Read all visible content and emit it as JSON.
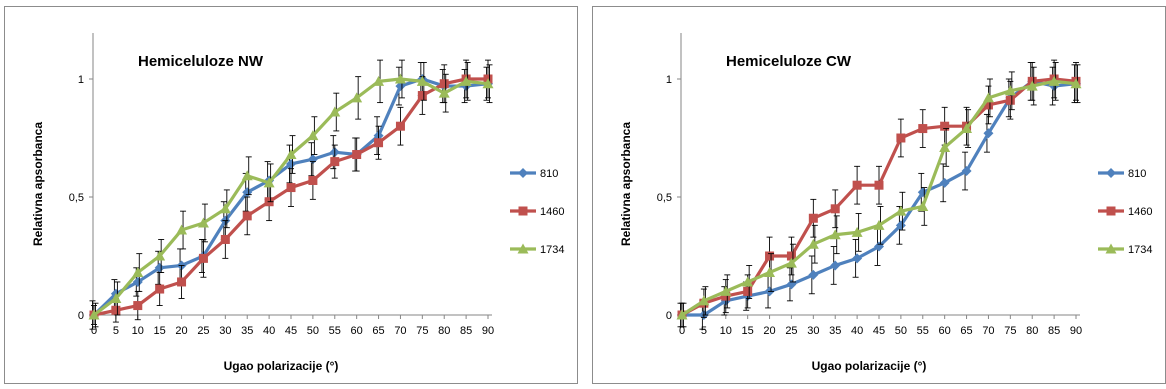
{
  "chart_data": [
    {
      "type": "line",
      "title": "Hemiceluloze NW",
      "xlabel": "Ugao polarizacije (°)",
      "ylabel": "Relativna apsorbanca",
      "x": [
        0,
        5,
        10,
        15,
        20,
        25,
        30,
        35,
        40,
        45,
        50,
        55,
        60,
        65,
        70,
        75,
        80,
        85,
        90
      ],
      "yticks": [
        "0",
        "0,5",
        "1"
      ],
      "ylim": [
        0,
        1.2
      ],
      "legend_position": "right",
      "error_bars": true,
      "series": [
        {
          "name": "810",
          "color": "#4f81bd",
          "marker": "diamond",
          "values": [
            0,
            0.09,
            0.14,
            0.2,
            0.21,
            0.25,
            0.4,
            0.52,
            0.57,
            0.64,
            0.66,
            0.69,
            0.68,
            0.76,
            0.97,
            1.0,
            0.97,
            0.97,
            0.98
          ],
          "errors": [
            0.06,
            0.06,
            0.06,
            0.07,
            0.07,
            0.07,
            0.08,
            0.08,
            0.08,
            0.08,
            0.07,
            0.07,
            0.07,
            0.08,
            0.08,
            0.07,
            0.07,
            0.07,
            0.07
          ]
        },
        {
          "name": "1460",
          "color": "#c0504d",
          "marker": "square",
          "values": [
            0,
            0.02,
            0.04,
            0.11,
            0.14,
            0.24,
            0.32,
            0.42,
            0.48,
            0.54,
            0.57,
            0.65,
            0.68,
            0.73,
            0.8,
            0.93,
            0.98,
            1.0,
            1.0
          ],
          "errors": [
            0.04,
            0.05,
            0.06,
            0.07,
            0.07,
            0.08,
            0.08,
            0.08,
            0.08,
            0.08,
            0.08,
            0.07,
            0.07,
            0.07,
            0.08,
            0.08,
            0.08,
            0.08,
            0.08
          ]
        },
        {
          "name": "1734",
          "color": "#9bbb59",
          "marker": "triangle",
          "values": [
            0,
            0.07,
            0.18,
            0.25,
            0.36,
            0.39,
            0.45,
            0.59,
            0.56,
            0.68,
            0.76,
            0.86,
            0.92,
            0.99,
            1.0,
            0.99,
            0.94,
            0.99,
            0.98
          ],
          "errors": [
            0.05,
            0.07,
            0.08,
            0.07,
            0.08,
            0.08,
            0.08,
            0.08,
            0.08,
            0.08,
            0.08,
            0.08,
            0.09,
            0.09,
            0.08,
            0.08,
            0.08,
            0.08,
            0.08
          ]
        }
      ]
    },
    {
      "type": "line",
      "title": "Hemiceluloze CW",
      "xlabel": "Ugao polarizacije (°)",
      "ylabel": "Relativna apsorbanca",
      "x": [
        0,
        5,
        10,
        15,
        20,
        25,
        30,
        35,
        40,
        45,
        50,
        55,
        60,
        65,
        70,
        75,
        80,
        85,
        90
      ],
      "yticks": [
        "0",
        "0,5",
        "1"
      ],
      "ylim": [
        0,
        1.2
      ],
      "legend_position": "right",
      "error_bars": true,
      "series": [
        {
          "name": "810",
          "color": "#4f81bd",
          "marker": "diamond",
          "values": [
            0,
            0.0,
            0.06,
            0.08,
            0.1,
            0.13,
            0.17,
            0.21,
            0.24,
            0.29,
            0.38,
            0.52,
            0.56,
            0.61,
            0.77,
            0.92,
            0.99,
            0.97,
            0.98
          ],
          "errors": [
            0.05,
            0.06,
            0.06,
            0.06,
            0.07,
            0.07,
            0.08,
            0.08,
            0.08,
            0.08,
            0.08,
            0.08,
            0.08,
            0.08,
            0.08,
            0.08,
            0.08,
            0.08,
            0.08
          ]
        },
        {
          "name": "1460",
          "color": "#c0504d",
          "marker": "square",
          "values": [
            0,
            0.05,
            0.08,
            0.1,
            0.25,
            0.25,
            0.41,
            0.45,
            0.55,
            0.55,
            0.75,
            0.79,
            0.8,
            0.8,
            0.89,
            0.91,
            0.99,
            1.0,
            0.99
          ],
          "errors": [
            0.05,
            0.06,
            0.07,
            0.07,
            0.08,
            0.08,
            0.08,
            0.08,
            0.08,
            0.08,
            0.08,
            0.08,
            0.08,
            0.08,
            0.08,
            0.08,
            0.08,
            0.08,
            0.08
          ]
        },
        {
          "name": "1734",
          "color": "#9bbb59",
          "marker": "triangle",
          "values": [
            0,
            0.06,
            0.1,
            0.14,
            0.18,
            0.22,
            0.3,
            0.34,
            0.35,
            0.38,
            0.44,
            0.46,
            0.71,
            0.79,
            0.92,
            0.95,
            0.97,
            0.99,
            0.98
          ],
          "errors": [
            0.05,
            0.06,
            0.07,
            0.07,
            0.08,
            0.08,
            0.08,
            0.08,
            0.08,
            0.08,
            0.08,
            0.08,
            0.08,
            0.08,
            0.08,
            0.08,
            0.08,
            0.08,
            0.08
          ]
        }
      ]
    }
  ]
}
